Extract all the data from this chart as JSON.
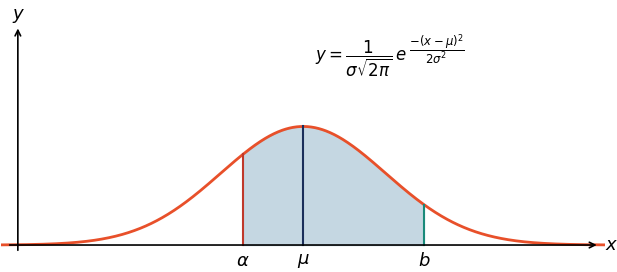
{
  "mu": 0,
  "sigma": 1.5,
  "alpha": -1.1,
  "b": 2.2,
  "x_min": -5.5,
  "x_max": 5.5,
  "curve_color": "#E8502A",
  "fill_color": "#7fa8c0",
  "fill_alpha": 0.45,
  "vline_mu_color": "#1a2e5a",
  "vline_alpha_color": "#c0392b",
  "vline_b_color": "#1a8a7a",
  "background_color": "#ffffff",
  "label_x": "x",
  "label_y": "y",
  "tick_fontsize": 13,
  "formula_fontsize": 12,
  "figwidth": 6.17,
  "figheight": 2.72,
  "dpi": 100
}
